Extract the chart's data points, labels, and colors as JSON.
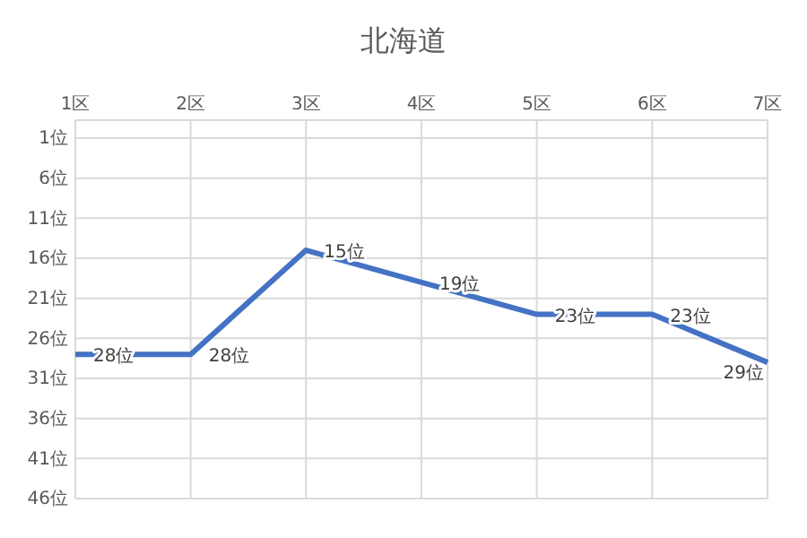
{
  "chart_data": {
    "type": "line",
    "title": "北海道",
    "categories": [
      "1区",
      "2区",
      "3区",
      "4区",
      "5区",
      "6区",
      "7区"
    ],
    "series": [
      {
        "color": "#4472c4",
        "values": [
          28,
          28,
          15,
          19,
          23,
          23,
          29
        ],
        "value_labels": [
          "28位",
          "28位",
          "15位",
          "19位",
          "23位",
          "23位",
          "29位"
        ]
      }
    ],
    "ylim": [
      46,
      1
    ],
    "yticks": [
      {
        "value": 1,
        "label": "1位"
      },
      {
        "value": 6,
        "label": "6位"
      },
      {
        "value": 11,
        "label": "11位"
      },
      {
        "value": 16,
        "label": "16位"
      },
      {
        "value": 21,
        "label": "21位"
      },
      {
        "value": 26,
        "label": "26位"
      },
      {
        "value": 31,
        "label": "31位"
      },
      {
        "value": 36,
        "label": "36位"
      },
      {
        "value": 41,
        "label": "41位"
      },
      {
        "value": 46,
        "label": "46位"
      }
    ],
    "grid": true,
    "marker": "none",
    "line_style": "solid"
  }
}
